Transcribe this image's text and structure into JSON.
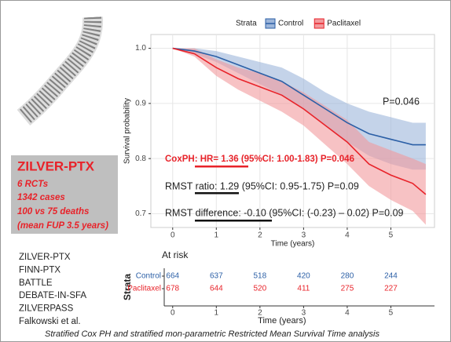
{
  "slide": {
    "box": {
      "title": "ZILVER-PTX",
      "lines": [
        "6 RCTs",
        "1342 cases",
        "100 vs 75 deaths",
        "(mean FUP 3.5 years)"
      ]
    },
    "trials": [
      "ZILVER-PTX",
      "FINN-PTX",
      "BATTLE",
      "DEBATE-IN-SFA",
      "ZILVERPASS",
      "Falkowski et al."
    ],
    "footer": "Stratified Cox PH and stratified mon-parametric Restricted Mean Survival Time analysis"
  },
  "chart_data": {
    "type": "line",
    "xlabel": "Time (years)",
    "ylabel": "Survival probability",
    "legend_title": "Strata",
    "legend": "top",
    "grid": true,
    "x": [
      0,
      0.5,
      1,
      1.5,
      2,
      2.5,
      3,
      3.5,
      4,
      4.5,
      5,
      5.5,
      5.8
    ],
    "series": [
      {
        "name": "Control",
        "color": "#2b5fa6",
        "band_color": "#9db6da",
        "values": [
          1,
          0.995,
          0.985,
          0.97,
          0.955,
          0.94,
          0.915,
          0.89,
          0.865,
          0.845,
          0.835,
          0.825,
          0.825
        ],
        "lower": [
          1,
          0.99,
          0.975,
          0.955,
          0.935,
          0.915,
          0.89,
          0.86,
          0.83,
          0.805,
          0.79,
          0.78,
          0.78
        ],
        "upper": [
          1,
          1,
          0.995,
          0.985,
          0.975,
          0.965,
          0.945,
          0.92,
          0.9,
          0.885,
          0.875,
          0.865,
          0.865
        ]
      },
      {
        "name": "Paclitaxel",
        "color": "#e8232a",
        "band_color": "#f29a9d",
        "values": [
          1,
          0.99,
          0.965,
          0.945,
          0.93,
          0.915,
          0.89,
          0.86,
          0.83,
          0.79,
          0.77,
          0.755,
          0.735
        ],
        "lower": [
          1,
          0.985,
          0.95,
          0.925,
          0.905,
          0.885,
          0.86,
          0.825,
          0.79,
          0.75,
          0.725,
          0.705,
          0.68
        ],
        "upper": [
          1,
          1,
          0.98,
          0.965,
          0.955,
          0.94,
          0.92,
          0.895,
          0.87,
          0.83,
          0.815,
          0.8,
          0.79
        ]
      }
    ],
    "xlim": [
      -0.5,
      6.0
    ],
    "ylim": [
      0.675,
      1.025
    ],
    "xticks": [
      0,
      1,
      2,
      3,
      4,
      5
    ],
    "yticks": [
      {
        "value": 1,
        "label": "1.0"
      },
      0.9,
      0.8,
      0.7
    ],
    "annotations": [
      "P=0.046",
      "CoxPH: HR= 1.36 (95%CI: 1.00-1.83) P=0.046",
      "RMST ratio: 1.29 (95%CI: 0.95-1.75) P=0.09",
      "RMST difference: -0.10 (95%CI: (-0.23) – 0.02) P=0.09"
    ],
    "risk_table": {
      "title": "At risk",
      "ylabel": "Strata",
      "xlabel": "Time (years)",
      "xticks": [
        0,
        1,
        2,
        3,
        4,
        5
      ],
      "rows": [
        {
          "name": "Control",
          "color": "#2b5fa6",
          "values": [
            664,
            637,
            518,
            420,
            280,
            244
          ]
        },
        {
          "name": "Paclitaxel",
          "color": "#e8232a",
          "values": [
            678,
            644,
            520,
            411,
            275,
            227
          ]
        }
      ]
    }
  }
}
